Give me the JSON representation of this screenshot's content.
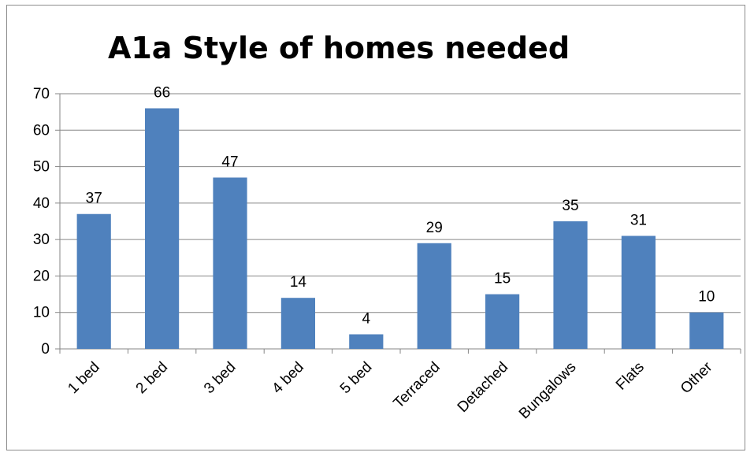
{
  "chart_data": {
    "type": "bar",
    "title": "A1a Style of homes needed",
    "categories": [
      "1 bed",
      "2 bed",
      "3 bed",
      "4 bed",
      "5 bed",
      "Terraced",
      "Detached",
      "Bungalows",
      "Flats",
      "Other"
    ],
    "values": [
      37,
      66,
      47,
      14,
      4,
      29,
      15,
      35,
      31,
      10
    ],
    "yticks": [
      "0",
      "10",
      "20",
      "30",
      "40",
      "50",
      "60",
      "70"
    ],
    "ylim": [
      0,
      70
    ],
    "grid": true,
    "legend": "none",
    "xlabel": "",
    "ylabel": "",
    "colors": {
      "bar": "#4f81bd",
      "grid": "#868686"
    }
  }
}
